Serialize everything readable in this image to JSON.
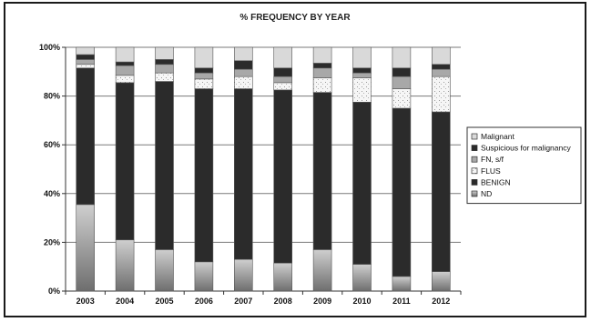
{
  "chart_data": {
    "type": "bar",
    "stacked": true,
    "percent": true,
    "title": "% FREQUENCY BY YEAR",
    "xlabel": "",
    "ylabel": "",
    "ylim": [
      0,
      100
    ],
    "yticks": [
      "0%",
      "20%",
      "40%",
      "60%",
      "80%",
      "100%"
    ],
    "grid": true,
    "legend_position": "right",
    "categories": [
      "2003",
      "2004",
      "2005",
      "2006",
      "2007",
      "2008",
      "2009",
      "2010",
      "2011",
      "2012"
    ],
    "series": [
      {
        "name": "ND",
        "color": "#8a8a8a",
        "style": "gradient",
        "values": [
          35.5,
          21,
          17,
          12,
          13,
          11.5,
          17,
          11,
          6,
          8
        ]
      },
      {
        "name": "BENIGN",
        "color": "#2b2b2b",
        "style": "solid",
        "values": [
          56,
          64.5,
          69,
          71,
          70,
          71,
          64.5,
          66.5,
          69,
          65.5
        ]
      },
      {
        "name": "FLUS",
        "color": "#f4f4f4",
        "style": "speckle",
        "values": [
          1.5,
          3,
          3.5,
          4,
          5,
          3,
          6,
          10,
          8,
          14.5
        ]
      },
      {
        "name": "FN, s/f",
        "color": "#a8a8a8",
        "style": "solid",
        "values": [
          2,
          4,
          3.5,
          2.5,
          3,
          2.5,
          4,
          2,
          5,
          3
        ]
      },
      {
        "name": "Suspicious for malignancy",
        "color": "#2b2b2b",
        "style": "solid",
        "values": [
          2,
          1.5,
          2,
          2,
          3.5,
          3.5,
          2,
          2,
          3.5,
          2
        ]
      },
      {
        "name": "Malignant",
        "color": "#d9d9d9",
        "style": "solid",
        "values": [
          3,
          6,
          5,
          8.5,
          5.5,
          8.5,
          6.5,
          8.5,
          8.5,
          7
        ]
      }
    ]
  }
}
